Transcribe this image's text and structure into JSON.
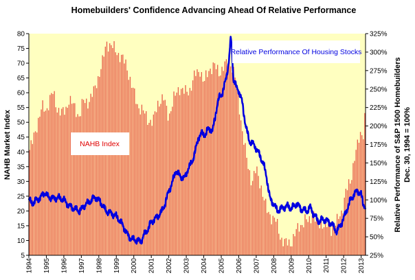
{
  "chart_data": {
    "type": "bar",
    "title": "Homebuilders' Confidence Advancing Ahead Of Relative Performance",
    "ylabel": "NAHB Market Index",
    "y2label": [
      "Relative Performance of S&P 1500 Homebuilders",
      "Dec. 30, 1994 = 100%"
    ],
    "xticks": [
      "1994",
      "1995",
      "1996",
      "1997",
      "1998",
      "1999",
      "2000",
      "2001",
      "2002",
      "2003",
      "2004",
      "2005",
      "2006",
      "2007",
      "2008",
      "2009",
      "2010",
      "2011",
      "2012",
      "2013"
    ],
    "ylim": [
      5,
      80
    ],
    "yticks": [
      5,
      10,
      15,
      20,
      25,
      30,
      35,
      40,
      45,
      50,
      55,
      60,
      65,
      70,
      75,
      80
    ],
    "y2lim": [
      25,
      325
    ],
    "y2ticks": [
      "25%",
      "50%",
      "75%",
      "100%",
      "125%",
      "150%",
      "175%",
      "200%",
      "225%",
      "250%",
      "275%",
      "300%",
      "325%"
    ],
    "x_range": [
      1994.0,
      2013.25
    ],
    "plot_background": "#ffffc0",
    "grid": false,
    "colors": {
      "bars": "#e8604a",
      "line": "#0000e0",
      "bar_label": "#e00000"
    },
    "annotations": [
      {
        "text": "NAHB Index",
        "color": "#e00000"
      },
      {
        "text": "Relative Performance Of Housing Stocks",
        "color": "#0000e0"
      }
    ],
    "series": [
      {
        "name": "NAHB Index",
        "type": "bar",
        "axis": "left",
        "keyframes": [
          [
            1994.0,
            40
          ],
          [
            1994.2,
            43
          ],
          [
            1994.5,
            50
          ],
          [
            1994.75,
            55
          ],
          [
            1995.0,
            54
          ],
          [
            1995.2,
            58
          ],
          [
            1995.4,
            60
          ],
          [
            1995.6,
            55
          ],
          [
            1995.9,
            53
          ],
          [
            1996.1,
            54
          ],
          [
            1996.3,
            58
          ],
          [
            1996.6,
            55
          ],
          [
            1996.9,
            52
          ],
          [
            1997.1,
            57
          ],
          [
            1997.4,
            57
          ],
          [
            1997.7,
            60
          ],
          [
            1998.0,
            66
          ],
          [
            1998.2,
            70
          ],
          [
            1998.45,
            77
          ],
          [
            1998.7,
            76
          ],
          [
            1999.0,
            74
          ],
          [
            1999.3,
            72
          ],
          [
            1999.6,
            69
          ],
          [
            1999.9,
            62
          ],
          [
            2000.2,
            56
          ],
          [
            2000.5,
            54
          ],
          [
            2000.8,
            51
          ],
          [
            2001.1,
            50
          ],
          [
            2001.4,
            57
          ],
          [
            2001.7,
            58
          ],
          [
            2002.0,
            52
          ],
          [
            2002.3,
            58
          ],
          [
            2002.6,
            62
          ],
          [
            2002.9,
            60
          ],
          [
            2003.2,
            61
          ],
          [
            2003.5,
            66
          ],
          [
            2003.8,
            68
          ],
          [
            2004.0,
            63
          ],
          [
            2004.3,
            68
          ],
          [
            2004.6,
            69
          ],
          [
            2004.9,
            67
          ],
          [
            2005.2,
            69
          ],
          [
            2005.5,
            71
          ],
          [
            2005.8,
            65
          ],
          [
            2006.0,
            57
          ],
          [
            2006.25,
            45
          ],
          [
            2006.5,
            36
          ],
          [
            2006.75,
            30
          ],
          [
            2007.0,
            34
          ],
          [
            2007.3,
            28
          ],
          [
            2007.6,
            20
          ],
          [
            2007.9,
            18
          ],
          [
            2008.1,
            17
          ],
          [
            2008.4,
            11
          ],
          [
            2008.7,
            9
          ],
          [
            2008.95,
            9
          ],
          [
            2009.2,
            12
          ],
          [
            2009.5,
            15
          ],
          [
            2009.8,
            17
          ],
          [
            2010.0,
            16
          ],
          [
            2010.25,
            20
          ],
          [
            2010.5,
            15
          ],
          [
            2010.75,
            16
          ],
          [
            2011.0,
            15
          ],
          [
            2011.3,
            14
          ],
          [
            2011.6,
            16
          ],
          [
            2011.9,
            20
          ],
          [
            2012.1,
            26
          ],
          [
            2012.4,
            30
          ],
          [
            2012.6,
            38
          ],
          [
            2012.8,
            42
          ],
          [
            2013.0,
            47
          ],
          [
            2013.1,
            45
          ],
          [
            2013.2,
            52
          ]
        ]
      },
      {
        "name": "Relative Performance Of Housing Stocks",
        "type": "line",
        "axis": "right",
        "keyframes": [
          [
            1994.0,
            100
          ],
          [
            1994.2,
            95
          ],
          [
            1994.4,
            99
          ],
          [
            1994.7,
            104
          ],
          [
            1994.9,
            110
          ],
          [
            1995.1,
            104
          ],
          [
            1995.4,
            102
          ],
          [
            1995.7,
            103
          ],
          [
            1996.0,
            100
          ],
          [
            1996.3,
            92
          ],
          [
            1996.6,
            88
          ],
          [
            1996.9,
            85
          ],
          [
            1997.2,
            93
          ],
          [
            1997.5,
            98
          ],
          [
            1997.8,
            104
          ],
          [
            1998.1,
            97
          ],
          [
            1998.4,
            85
          ],
          [
            1998.7,
            82
          ],
          [
            1999.0,
            78
          ],
          [
            1999.2,
            72
          ],
          [
            1999.5,
            60
          ],
          [
            1999.7,
            50
          ],
          [
            1999.9,
            47
          ],
          [
            2000.2,
            45
          ],
          [
            2000.4,
            44
          ],
          [
            2000.6,
            53
          ],
          [
            2000.8,
            60
          ],
          [
            2001.0,
            70
          ],
          [
            2001.3,
            76
          ],
          [
            2001.6,
            84
          ],
          [
            2001.8,
            96
          ],
          [
            2002.0,
            112
          ],
          [
            2002.2,
            123
          ],
          [
            2002.4,
            140
          ],
          [
            2002.6,
            133
          ],
          [
            2002.9,
            129
          ],
          [
            2003.1,
            142
          ],
          [
            2003.3,
            150
          ],
          [
            2003.5,
            164
          ],
          [
            2003.7,
            185
          ],
          [
            2003.9,
            190
          ],
          [
            2004.1,
            188
          ],
          [
            2004.3,
            198
          ],
          [
            2004.5,
            192
          ],
          [
            2004.7,
            220
          ],
          [
            2004.9,
            240
          ],
          [
            2005.1,
            246
          ],
          [
            2005.3,
            268
          ],
          [
            2005.45,
            290
          ],
          [
            2005.55,
            320
          ],
          [
            2005.6,
            310
          ],
          [
            2005.7,
            263
          ],
          [
            2005.85,
            253
          ],
          [
            2006.0,
            248
          ],
          [
            2006.2,
            232
          ],
          [
            2006.4,
            200
          ],
          [
            2006.6,
            180
          ],
          [
            2006.8,
            176
          ],
          [
            2007.0,
            170
          ],
          [
            2007.2,
            160
          ],
          [
            2007.4,
            150
          ],
          [
            2007.6,
            130
          ],
          [
            2007.8,
            100
          ],
          [
            2008.0,
            95
          ],
          [
            2008.2,
            85
          ],
          [
            2008.4,
            88
          ],
          [
            2008.6,
            90
          ],
          [
            2008.8,
            92
          ],
          [
            2009.0,
            88
          ],
          [
            2009.3,
            95
          ],
          [
            2009.6,
            87
          ],
          [
            2009.9,
            85
          ],
          [
            2010.1,
            90
          ],
          [
            2010.3,
            80
          ],
          [
            2010.6,
            70
          ],
          [
            2010.8,
            74
          ],
          [
            2011.0,
            72
          ],
          [
            2011.3,
            68
          ],
          [
            2011.6,
            57
          ],
          [
            2011.8,
            65
          ],
          [
            2012.0,
            75
          ],
          [
            2012.2,
            88
          ],
          [
            2012.4,
            100
          ],
          [
            2012.6,
            108
          ],
          [
            2012.8,
            112
          ],
          [
            2013.0,
            108
          ],
          [
            2013.1,
            95
          ],
          [
            2013.2,
            92
          ]
        ]
      }
    ]
  }
}
